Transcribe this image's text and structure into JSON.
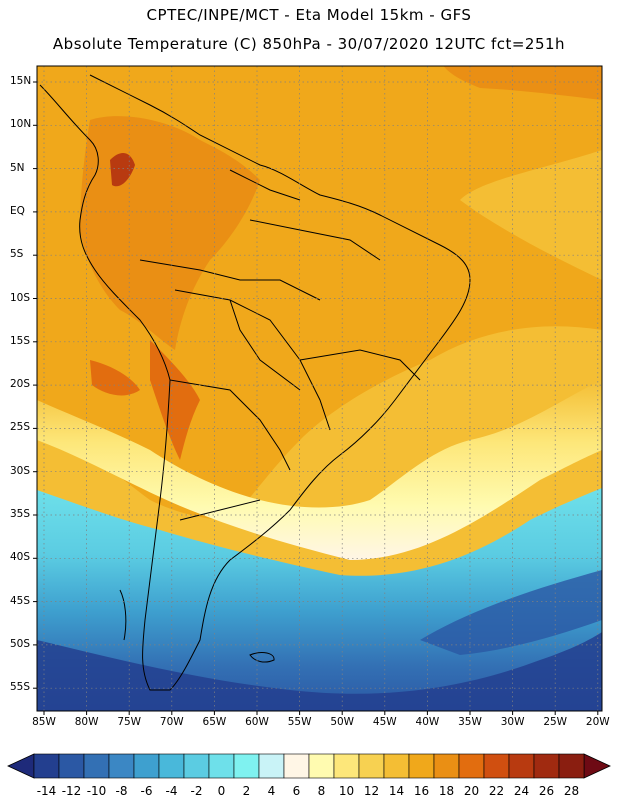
{
  "header": {
    "line1": "CPTEC/INPE/MCT -   Eta Model 15km - GFS",
    "line2": "Absolute Temperature (C) 850hPa - 30/07/2020 12UTC fct=251h"
  },
  "map": {
    "lat_labels": [
      "15N",
      "10N",
      "5N",
      "EQ",
      "5S",
      "10S",
      "15S",
      "20S",
      "25S",
      "30S",
      "35S",
      "40S",
      "45S",
      "50S",
      "55S"
    ],
    "lon_labels": [
      "85W",
      "80W",
      "75W",
      "70W",
      "65W",
      "60W",
      "55W",
      "50W",
      "45W",
      "40W",
      "35W",
      "30W",
      "25W",
      "20W"
    ]
  },
  "colorbar": {
    "labels": [
      "-14",
      "-12",
      "-10",
      "-8",
      "-6",
      "-4",
      "-2",
      "0",
      "2",
      "4",
      "6",
      "8",
      "10",
      "12",
      "14",
      "16",
      "18",
      "20",
      "22",
      "24",
      "26",
      "28"
    ],
    "colors": [
      "#233f8f",
      "#2b58a4",
      "#3370b4",
      "#3b87c4",
      "#3ea0cf",
      "#49b8da",
      "#5bcce2",
      "#6ee0ea",
      "#7ff2f0",
      "#c9f3f7",
      "#fff6e6",
      "#fffbb0",
      "#fde77a",
      "#f7d151",
      "#f4be34",
      "#f0a81b",
      "#ea8f14",
      "#e26d0f",
      "#d04f10",
      "#b83a10",
      "#a02a10",
      "#8a1e10"
    ]
  }
}
